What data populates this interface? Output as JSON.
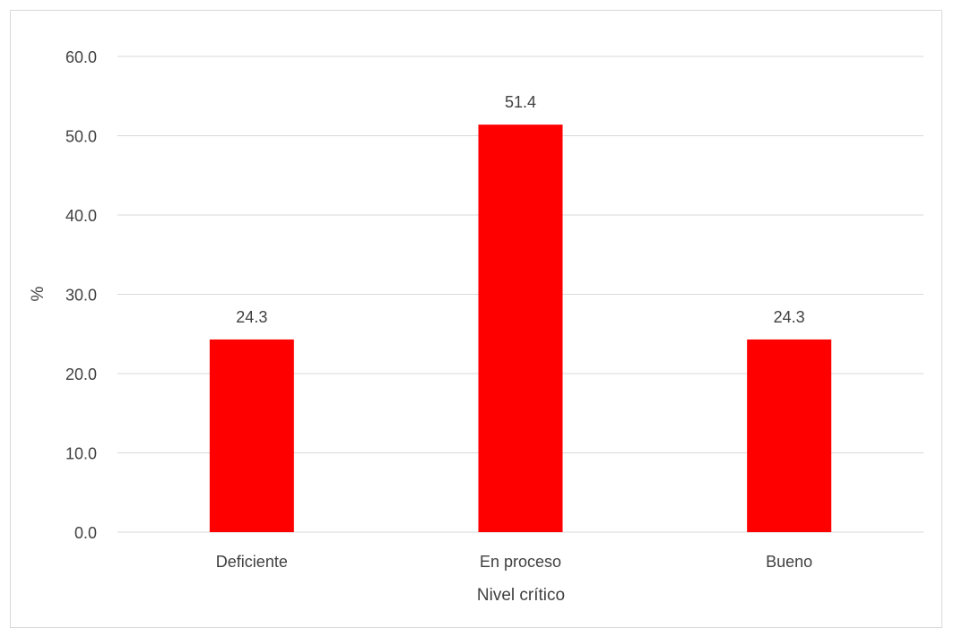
{
  "chart_data": {
    "type": "bar",
    "categories": [
      "Deficiente",
      "En proceso",
      "Bueno"
    ],
    "values": [
      24.3,
      51.4,
      24.3
    ],
    "value_labels": [
      "24.3",
      "51.4",
      "24.3"
    ],
    "title": "",
    "xlabel": "Nivel crítico",
    "ylabel": "%",
    "ylim": [
      0,
      60
    ],
    "yticks": [
      "0.0",
      "10.0",
      "20.0",
      "30.0",
      "40.0",
      "50.0",
      "60.0"
    ],
    "grid": true,
    "legend": "none",
    "bar_color": "#ff0000",
    "grid_color": "#d9d9d9",
    "text_color": "#404040"
  }
}
